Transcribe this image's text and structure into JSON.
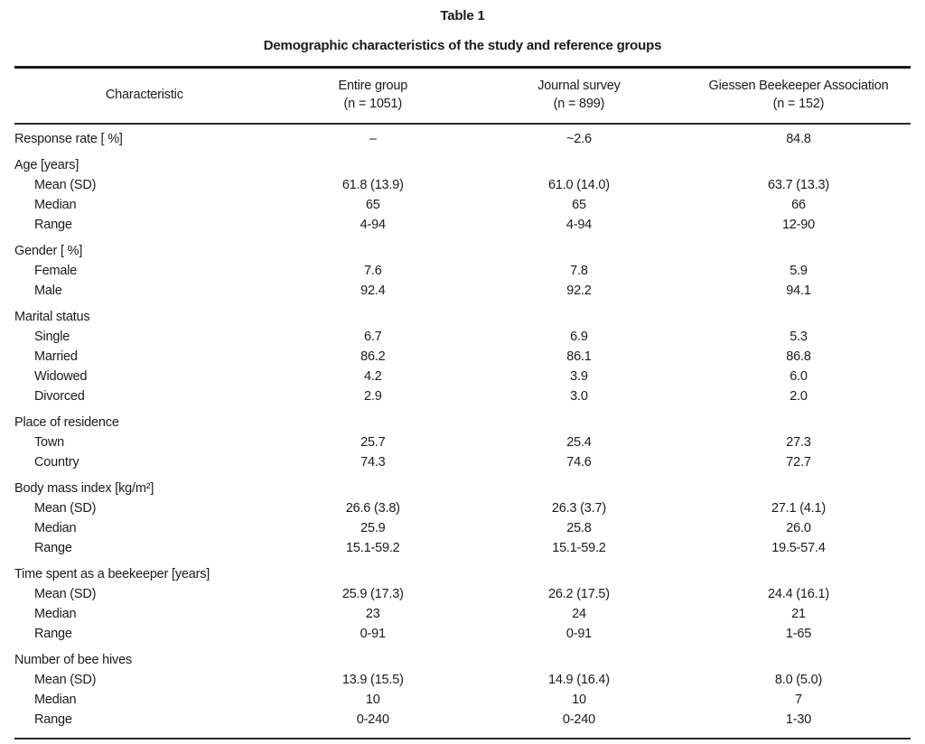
{
  "table": {
    "label": "Table 1",
    "title": "Demographic characteristics of the study and reference groups",
    "columns": [
      {
        "label": "Characteristic",
        "sub": ""
      },
      {
        "label": "Entire group",
        "sub": "(n = 1051)"
      },
      {
        "label": "Journal survey",
        "sub": "(n = 899)"
      },
      {
        "label": "Giessen Beekeeper Association",
        "sub": "(n = 152)"
      }
    ],
    "rows": [
      {
        "type": "data",
        "indent": 0,
        "label": "Response rate [ %]",
        "values": [
          "–",
          "~2.6",
          "84.8"
        ]
      },
      {
        "type": "section",
        "indent": 0,
        "label": "Age [years]",
        "values": [
          "",
          "",
          ""
        ]
      },
      {
        "type": "data",
        "indent": 1,
        "label": "Mean (SD)",
        "values": [
          "61.8 (13.9)",
          "61.0 (14.0)",
          "63.7 (13.3)"
        ]
      },
      {
        "type": "data",
        "indent": 1,
        "label": "Median",
        "values": [
          "65",
          "65",
          "66"
        ]
      },
      {
        "type": "data",
        "indent": 1,
        "label": "Range",
        "values": [
          "4-94",
          "4-94",
          "12-90"
        ]
      },
      {
        "type": "section",
        "indent": 0,
        "label": "Gender [ %]",
        "values": [
          "",
          "",
          ""
        ]
      },
      {
        "type": "data",
        "indent": 1,
        "label": "Female",
        "values": [
          "7.6",
          "7.8",
          "5.9"
        ]
      },
      {
        "type": "data",
        "indent": 1,
        "label": "Male",
        "values": [
          "92.4",
          "92.2",
          "94.1"
        ]
      },
      {
        "type": "section",
        "indent": 0,
        "label": "Marital status",
        "values": [
          "",
          "",
          ""
        ]
      },
      {
        "type": "data",
        "indent": 1,
        "label": "Single",
        "values": [
          "6.7",
          "6.9",
          "5.3"
        ]
      },
      {
        "type": "data",
        "indent": 1,
        "label": "Married",
        "values": [
          "86.2",
          "86.1",
          "86.8"
        ]
      },
      {
        "type": "data",
        "indent": 1,
        "label": "Widowed",
        "values": [
          "4.2",
          "3.9",
          "6.0"
        ]
      },
      {
        "type": "data",
        "indent": 1,
        "label": "Divorced",
        "values": [
          "2.9",
          "3.0",
          "2.0"
        ]
      },
      {
        "type": "section",
        "indent": 0,
        "label": "Place of residence",
        "values": [
          "",
          "",
          ""
        ]
      },
      {
        "type": "data",
        "indent": 1,
        "label": "Town",
        "values": [
          "25.7",
          "25.4",
          "27.3"
        ]
      },
      {
        "type": "data",
        "indent": 1,
        "label": "Country",
        "values": [
          "74.3",
          "74.6",
          "72.7"
        ]
      },
      {
        "type": "section",
        "indent": 0,
        "label": "Body mass index [kg/m²]",
        "values": [
          "",
          "",
          ""
        ]
      },
      {
        "type": "data",
        "indent": 1,
        "label": "Mean (SD)",
        "values": [
          "26.6 (3.8)",
          "26.3 (3.7)",
          "27.1 (4.1)"
        ]
      },
      {
        "type": "data",
        "indent": 1,
        "label": "Median",
        "values": [
          "25.9",
          "25.8",
          "26.0"
        ]
      },
      {
        "type": "data",
        "indent": 1,
        "label": "Range",
        "values": [
          "15.1-59.2",
          "15.1-59.2",
          "19.5-57.4"
        ]
      },
      {
        "type": "section",
        "indent": 0,
        "label": "Time spent as a beekeeper [years]",
        "values": [
          "",
          "",
          ""
        ]
      },
      {
        "type": "data",
        "indent": 1,
        "label": "Mean (SD)",
        "values": [
          "25.9 (17.3)",
          "26.2 (17.5)",
          "24.4 (16.1)"
        ]
      },
      {
        "type": "data",
        "indent": 1,
        "label": "Median",
        "values": [
          "23",
          "24",
          "21"
        ]
      },
      {
        "type": "data",
        "indent": 1,
        "label": "Range",
        "values": [
          "0-91",
          "0-91",
          "1-65"
        ]
      },
      {
        "type": "section",
        "indent": 0,
        "label": "Number of bee hives",
        "values": [
          "",
          "",
          ""
        ]
      },
      {
        "type": "data",
        "indent": 1,
        "label": "Mean (SD)",
        "values": [
          "13.9 (15.5)",
          "14.9 (16.4)",
          "8.0 (5.0)"
        ]
      },
      {
        "type": "data",
        "indent": 1,
        "label": "Median",
        "values": [
          "10",
          "10",
          "7"
        ]
      },
      {
        "type": "data",
        "indent": 1,
        "label": "Range",
        "values": [
          "0-240",
          "0-240",
          "1-30"
        ]
      }
    ]
  }
}
